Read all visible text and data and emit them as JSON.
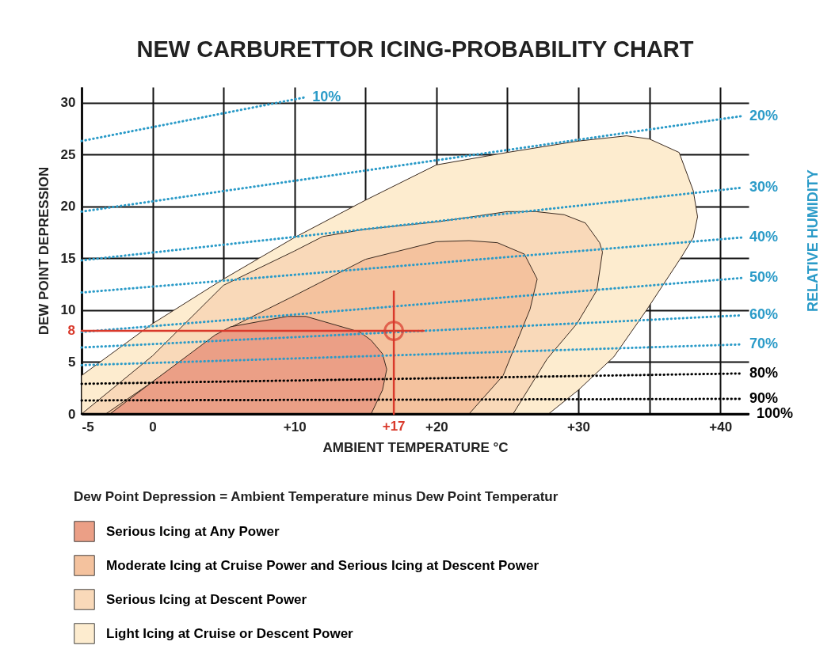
{
  "chart_data": {
    "type": "area",
    "title": "NEW CARBURETTOR ICING-PROBABILITY CHART",
    "xlabel": "AMBIENT TEMPERATURE °C",
    "ylabel": "DEW POINT DEPRESSION",
    "y2label": "RELATIVE HUMIDITY",
    "xlim": [
      -5,
      42
    ],
    "ylim": [
      0,
      31.5
    ],
    "xticks": [
      -5,
      0,
      {
        "value": 5,
        "label": null
      },
      {
        "value": 10,
        "label": "+10"
      },
      {
        "value": 15,
        "label": null
      },
      {
        "value": 20,
        "label": "+20"
      },
      {
        "value": 25,
        "label": null
      },
      {
        "value": 30,
        "label": "+30"
      },
      {
        "value": 35,
        "label": null
      },
      {
        "value": 40,
        "label": "+40"
      }
    ],
    "yticks": [
      0,
      5,
      10,
      15,
      20,
      25,
      30
    ],
    "grid": true,
    "legend": "bottom",
    "series": [
      {
        "name": "Serious Icing at Any Power",
        "color": "#eb9f86",
        "x": [
          -3,
          0,
          4.4,
          5.5,
          9.5,
          10.8,
          14.6,
          15.4,
          16.2,
          16.5,
          16.2,
          15.4,
          -3
        ],
        "values": [
          0,
          3.1,
          7.6,
          8.4,
          9.4,
          9.4,
          7.9,
          7.1,
          5.8,
          4.3,
          2.3,
          0,
          0
        ]
      },
      {
        "name": "Moderate Icing at Cruise Power and Serious Icing at Descent Power",
        "color": "#f4c29e",
        "x": [
          -3.3,
          0,
          5,
          10,
          15,
          20,
          22.3,
          24.3,
          26.2,
          27.1,
          26.6,
          24.7,
          22.3,
          -3.3
        ],
        "values": [
          0,
          3.1,
          8,
          11.4,
          14.9,
          16.6,
          16.7,
          16.5,
          15.4,
          13,
          10.1,
          3.7,
          0,
          0
        ]
      },
      {
        "name": "Serious Icing at Descent Power",
        "color": "#f9d9b9",
        "x": [
          -5,
          0,
          5,
          10,
          12,
          15,
          20,
          25,
          27,
          29,
          30.5,
          31.5,
          31.7,
          31.3,
          29.9,
          27.8,
          25.4,
          -5
        ],
        "values": [
          0,
          5.6,
          12.4,
          15.7,
          17.1,
          17.8,
          18.5,
          19.5,
          19.5,
          19.2,
          18.4,
          16.5,
          15.6,
          11.9,
          8.7,
          5.3,
          0,
          0
        ]
      },
      {
        "name": "Light Icing at Cruise or Descent Power",
        "color": "#fdeccf",
        "x": [
          -5,
          0,
          5,
          10,
          15,
          20,
          25,
          30,
          33.4,
          35,
          37.1,
          38.1,
          38.4,
          38.1,
          37.3,
          34.8,
          32.5,
          30,
          27.9,
          -5,
          -5
        ],
        "values": [
          3.7,
          8.7,
          13,
          17,
          20.6,
          24,
          25.2,
          26.3,
          26.8,
          26.5,
          25.2,
          21.5,
          19,
          17,
          15.2,
          10,
          5.5,
          2.3,
          0,
          0,
          3.7
        ]
      },
      {
        "name": "10%",
        "type": "line",
        "color": "#2b9bc8",
        "line_style": "dotted",
        "x": [
          -5,
          10.7
        ],
        "values": [
          26.3,
          30.5
        ]
      },
      {
        "name": "20%",
        "type": "line",
        "color": "#2b9bc8",
        "line_style": "dotted",
        "x": [
          -5,
          41.5
        ],
        "values": [
          19.5,
          28.7
        ]
      },
      {
        "name": "30%",
        "type": "line",
        "color": "#2b9bc8",
        "line_style": "dotted",
        "x": [
          -5,
          41.5
        ],
        "values": [
          14.8,
          21.8
        ]
      },
      {
        "name": "40%",
        "type": "line",
        "color": "#2b9bc8",
        "line_style": "dotted",
        "x": [
          -5,
          41.5
        ],
        "values": [
          11.7,
          17
        ]
      },
      {
        "name": "50%",
        "type": "line",
        "color": "#2b9bc8",
        "line_style": "dotted",
        "x": [
          -5,
          41.5
        ],
        "values": [
          7.9,
          13.1
        ]
      },
      {
        "name": "60%",
        "type": "line",
        "color": "#2b9bc8",
        "line_style": "dotted",
        "x": [
          -5,
          41.5
        ],
        "values": [
          6.4,
          9.5
        ]
      },
      {
        "name": "70%",
        "type": "line",
        "color": "#2b9bc8",
        "line_style": "dotted",
        "x": [
          -5,
          41.5
        ],
        "values": [
          4.7,
          6.7
        ]
      },
      {
        "name": "80%",
        "type": "line",
        "color": "#000000",
        "line_style": "dotted",
        "x": [
          -5,
          41.5
        ],
        "values": [
          2.9,
          3.9
        ]
      },
      {
        "name": "90%",
        "type": "line",
        "color": "#000000",
        "line_style": "dotted",
        "x": [
          -5,
          41.5
        ],
        "values": [
          1.3,
          1.45
        ]
      },
      {
        "name": "100%",
        "type": "line",
        "color": "#000000",
        "line_style": "solid",
        "x": [
          -5,
          42
        ],
        "values": [
          0,
          0
        ]
      },
      {
        "type": "line",
        "color": "#d9392b",
        "line_style": "solid",
        "x": [
          -5,
          19.1
        ],
        "values": [
          8,
          8
        ]
      },
      {
        "type": "line",
        "color": "#d9392b",
        "line_style": "solid",
        "x": [
          17,
          17
        ],
        "values": [
          0,
          11.8
        ]
      },
      {
        "type": "scatter",
        "color": "#d9392b",
        "marker": "circle",
        "x": [
          17
        ],
        "values": [
          8
        ]
      }
    ],
    "annotations": [
      {
        "text": "8",
        "x": -5,
        "y": 8
      },
      {
        "text": "+17",
        "x": 17,
        "y": 0
      },
      "Dew Point Depression = Ambient Temperature minus Dew Point Temperatur"
    ]
  }
}
